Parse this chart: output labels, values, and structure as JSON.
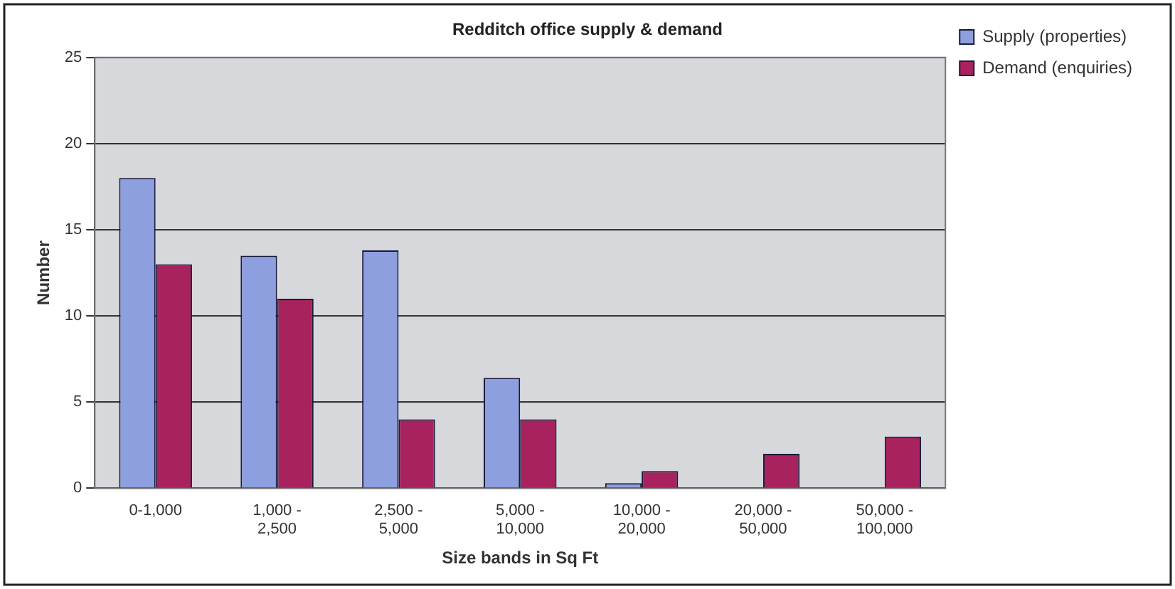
{
  "chart_data": {
    "type": "bar",
    "title": "Redditch office supply & demand",
    "xlabel": "Size bands in Sq Ft",
    "ylabel": "Number",
    "categories": [
      "0-1,000",
      "1,000 - 2,500",
      "2,500 - 5,000",
      "5,000 - 10,000",
      "10,000 - 20,000",
      "20,000 - 50,000",
      "50,000 - 100,000"
    ],
    "series": [
      {
        "name": "Supply (properties)",
        "color": "#8e9fe0",
        "values": [
          18,
          13.5,
          13.8,
          6.4,
          0.3,
          0,
          0
        ]
      },
      {
        "name": "Demand (enquiries)",
        "color": "#a8225e",
        "values": [
          13,
          11,
          4,
          4,
          1,
          2,
          3
        ]
      }
    ],
    "ylim": [
      0,
      25
    ],
    "yticks": [
      0,
      5,
      10,
      15,
      20,
      25
    ],
    "grid": "y",
    "legend": "right"
  }
}
